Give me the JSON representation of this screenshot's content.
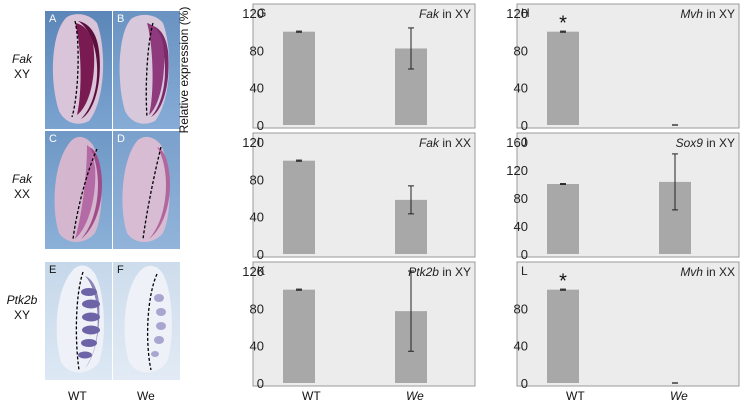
{
  "figure": {
    "row_labels": [
      {
        "gene": "Fak",
        "geno": "XY"
      },
      {
        "gene": "Fak",
        "geno": "XX"
      },
      {
        "gene": "Ptk2b",
        "geno": "XY"
      }
    ],
    "image_panels": [
      {
        "letter": "A",
        "stain": "dark"
      },
      {
        "letter": "B",
        "stain": "dark"
      },
      {
        "letter": "C",
        "stain": "medium"
      },
      {
        "letter": "D",
        "stain": "medium"
      },
      {
        "letter": "E",
        "stain": "stripes"
      },
      {
        "letter": "F",
        "stain": "faint"
      }
    ],
    "image_bottom": {
      "wt": "WT",
      "we": "We"
    },
    "y_axis_label": "Relative expression (%)",
    "x_categories": {
      "wt": "WT",
      "we": "We"
    }
  },
  "chart_data": [
    {
      "type": "bar",
      "letter": "G",
      "title_gene": "Fak",
      "title_rest": " in XY",
      "categories": [
        "WT",
        "We"
      ],
      "values": [
        100,
        82
      ],
      "errors": [
        0.6,
        22
      ],
      "ylim": [
        0,
        120
      ],
      "yticks": [
        0,
        40,
        80,
        120
      ]
    },
    {
      "type": "bar",
      "letter": "H",
      "title_gene": "Mvh",
      "title_rest": " in XY",
      "categories": [
        "WT",
        "We"
      ],
      "values": [
        100,
        0
      ],
      "errors": [
        0.6,
        0
      ],
      "ylim": [
        0,
        120
      ],
      "yticks": [
        0,
        40,
        80,
        120
      ],
      "annotation": "*"
    },
    {
      "type": "bar",
      "letter": "I",
      "title_gene": "Fak",
      "title_rest": " in XX",
      "categories": [
        "WT",
        "We"
      ],
      "values": [
        100,
        58
      ],
      "errors": [
        0.6,
        15
      ],
      "ylim": [
        0,
        120
      ],
      "yticks": [
        0,
        40,
        80,
        120
      ]
    },
    {
      "type": "bar",
      "letter": "J",
      "title_gene": "Sox9",
      "title_rest": " in XY",
      "categories": [
        "WT",
        "We"
      ],
      "values": [
        100,
        103
      ],
      "errors": [
        0.6,
        40
      ],
      "ylim": [
        0,
        160
      ],
      "yticks": [
        0,
        40,
        80,
        120,
        160
      ]
    },
    {
      "type": "bar",
      "letter": "K",
      "title_gene": "Ptk2b",
      "title_rest": " in XY",
      "categories": [
        "WT",
        "We"
      ],
      "values": [
        100,
        77
      ],
      "errors": [
        0.6,
        43
      ],
      "ylim": [
        0,
        120
      ],
      "yticks": [
        0,
        40,
        80,
        120
      ]
    },
    {
      "type": "bar",
      "letter": "L",
      "title_gene": "Mvh",
      "title_rest": " in XX",
      "categories": [
        "WT",
        "We"
      ],
      "values": [
        100,
        0
      ],
      "errors": [
        0.6,
        0
      ],
      "ylim": [
        0,
        120
      ],
      "yticks": [
        0,
        40,
        80
      ],
      "annotation": "*"
    }
  ]
}
